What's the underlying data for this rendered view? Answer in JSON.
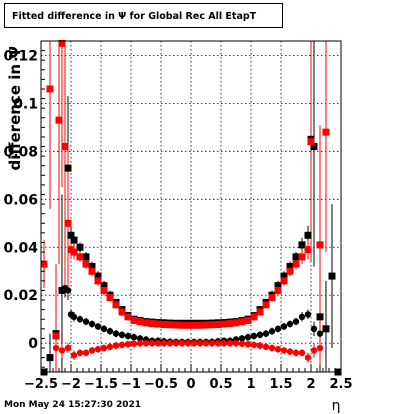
{
  "page": {
    "title": "Fitted difference in  Ψ  for Global Rec All EtapT",
    "footer": "Mon May 24 15:27:30 2021"
  },
  "chart_data": {
    "type": "scatter",
    "title": "Fitted difference in  Ψ  for Global Rec All EtapT",
    "xlabel": "η",
    "ylabel": "difference in Ψ",
    "xlim": [
      -2.5,
      2.5
    ],
    "ylim": [
      -0.012,
      0.126
    ],
    "grid": true,
    "x_ticks": [
      "−2.5",
      "−2",
      "−1.5",
      "−1",
      "−0.5",
      "0",
      "0.5",
      "1",
      "1.5",
      "2",
      "2.5"
    ],
    "y_ticks": [
      "0",
      "0.02",
      "0.04",
      "0.06",
      "0.08",
      "0.1",
      "0.12"
    ],
    "x_tick_values": [
      -2.5,
      -2,
      -1.5,
      -1,
      -0.5,
      0,
      0.5,
      1,
      1.5,
      2,
      2.5
    ],
    "y_tick_values": [
      0,
      0.02,
      0.04,
      0.06,
      0.08,
      0.1,
      0.12
    ],
    "series": [
      {
        "color": "#000000",
        "marker": "square",
        "points": [
          [
            -2.45,
            -0.012
          ],
          [
            -2.35,
            -0.006
          ],
          [
            -2.25,
            0.004
          ],
          [
            -2.15,
            0.022
          ],
          [
            -2.1,
            0.082
          ],
          [
            -2.05,
            0.073
          ],
          [
            -2.0,
            0.045
          ],
          [
            -1.95,
            0.043
          ],
          [
            -1.85,
            0.04
          ],
          [
            -1.75,
            0.036
          ],
          [
            -1.65,
            0.032
          ],
          [
            -1.55,
            0.028
          ],
          [
            -1.45,
            0.024
          ],
          [
            -1.35,
            0.02
          ],
          [
            -1.25,
            0.017
          ],
          [
            -1.15,
            0.014
          ],
          [
            -1.05,
            0.0115
          ],
          [
            -0.95,
            0.01
          ],
          [
            -0.85,
            0.0095
          ],
          [
            -0.75,
            0.009
          ],
          [
            -0.65,
            0.0088
          ],
          [
            -0.55,
            0.0086
          ],
          [
            -0.45,
            0.0085
          ],
          [
            -0.35,
            0.0084
          ],
          [
            -0.25,
            0.0083
          ],
          [
            -0.15,
            0.0083
          ],
          [
            -0.05,
            0.0083
          ],
          [
            0.05,
            0.0083
          ],
          [
            0.15,
            0.0083
          ],
          [
            0.25,
            0.0083
          ],
          [
            0.35,
            0.0084
          ],
          [
            0.45,
            0.0085
          ],
          [
            0.55,
            0.0086
          ],
          [
            0.65,
            0.0088
          ],
          [
            0.75,
            0.009
          ],
          [
            0.85,
            0.0095
          ],
          [
            0.95,
            0.01
          ],
          [
            1.05,
            0.0115
          ],
          [
            1.15,
            0.014
          ],
          [
            1.25,
            0.017
          ],
          [
            1.35,
            0.02
          ],
          [
            1.45,
            0.024
          ],
          [
            1.55,
            0.028
          ],
          [
            1.65,
            0.032
          ],
          [
            1.75,
            0.036
          ],
          [
            1.85,
            0.041
          ],
          [
            1.95,
            0.045
          ],
          [
            2.0,
            0.085
          ],
          [
            2.05,
            0.082
          ],
          [
            2.15,
            0.011
          ],
          [
            2.25,
            0.006
          ],
          [
            2.35,
            0.028
          ],
          [
            2.45,
            -0.012
          ]
        ],
        "errors": [
          0.001,
          0.01,
          0.02,
          0.04,
          0.05,
          0.03,
          0.004,
          0.003,
          0.002,
          0.002,
          0.002,
          0.002,
          0.002,
          0.002,
          0.0015,
          0.0015,
          0.0015,
          0.0015,
          0.0015,
          0.0015,
          0.0015,
          0.0015,
          0.0015,
          0.0015,
          0.0015,
          0.0015,
          0.0015,
          0.0015,
          0.0015,
          0.0015,
          0.0015,
          0.0015,
          0.0015,
          0.0015,
          0.0015,
          0.0015,
          0.0015,
          0.0015,
          0.0015,
          0.0015,
          0.002,
          0.002,
          0.002,
          0.002,
          0.002,
          0.003,
          0.004,
          0.05,
          0.05,
          0.03,
          0.02,
          0.03,
          0.001
        ]
      },
      {
        "color": "#000000",
        "marker": "circle",
        "points": [
          [
            -2.1,
            0.023
          ],
          [
            -2.05,
            0.022
          ],
          [
            -2.0,
            0.012
          ],
          [
            -1.95,
            0.011
          ],
          [
            -1.85,
            0.01
          ],
          [
            -1.75,
            0.009
          ],
          [
            -1.65,
            0.008
          ],
          [
            -1.55,
            0.007
          ],
          [
            -1.45,
            0.006
          ],
          [
            -1.35,
            0.005
          ],
          [
            -1.25,
            0.004
          ],
          [
            -1.15,
            0.0035
          ],
          [
            -1.05,
            0.003
          ],
          [
            -0.95,
            0.0025
          ],
          [
            -0.85,
            0.002
          ],
          [
            -0.75,
            0.0015
          ],
          [
            -0.65,
            0.001
          ],
          [
            -0.55,
            0.001
          ],
          [
            -0.45,
            0.0008
          ],
          [
            -0.35,
            0.0006
          ],
          [
            -0.25,
            0.0005
          ],
          [
            -0.15,
            0.0005
          ],
          [
            -0.05,
            0.0005
          ],
          [
            0.05,
            0.0005
          ],
          [
            0.15,
            0.0005
          ],
          [
            0.25,
            0.0005
          ],
          [
            0.35,
            0.0006
          ],
          [
            0.45,
            0.0008
          ],
          [
            0.55,
            0.001
          ],
          [
            0.65,
            0.001
          ],
          [
            0.75,
            0.0015
          ],
          [
            0.85,
            0.002
          ],
          [
            0.95,
            0.0025
          ],
          [
            1.05,
            0.003
          ],
          [
            1.15,
            0.0035
          ],
          [
            1.25,
            0.004
          ],
          [
            1.35,
            0.005
          ],
          [
            1.45,
            0.006
          ],
          [
            1.55,
            0.007
          ],
          [
            1.65,
            0.008
          ],
          [
            1.75,
            0.009
          ],
          [
            1.85,
            0.011
          ],
          [
            1.95,
            0.012
          ],
          [
            2.05,
            0.006
          ],
          [
            2.15,
            0.004
          ]
        ],
        "errors": [
          0.004,
          0.004,
          0.002,
          0.002,
          0.0015,
          0.0015,
          0.0015,
          0.0015,
          0.0015,
          0.0015,
          0.0015,
          0.0015,
          0.0015,
          0.0015,
          0.0015,
          0.0015,
          0.0015,
          0.0015,
          0.0015,
          0.0015,
          0.0015,
          0.0015,
          0.0015,
          0.0015,
          0.0015,
          0.0015,
          0.0015,
          0.0015,
          0.0015,
          0.0015,
          0.0015,
          0.0015,
          0.0015,
          0.0015,
          0.0015,
          0.0015,
          0.0015,
          0.0015,
          0.0015,
          0.0015,
          0.0015,
          0.002,
          0.002,
          0.003,
          0.003
        ]
      },
      {
        "color": "#ff0000",
        "marker": "square",
        "points": [
          [
            -2.45,
            0.033
          ],
          [
            -2.35,
            0.106
          ],
          [
            -2.25,
            0.003
          ],
          [
            -2.2,
            0.093
          ],
          [
            -2.15,
            0.125
          ],
          [
            -2.1,
            0.082
          ],
          [
            -2.05,
            0.05
          ],
          [
            -2.0,
            0.039
          ],
          [
            -1.95,
            0.038
          ],
          [
            -1.85,
            0.036
          ],
          [
            -1.75,
            0.033
          ],
          [
            -1.65,
            0.03
          ],
          [
            -1.55,
            0.026
          ],
          [
            -1.45,
            0.022
          ],
          [
            -1.35,
            0.019
          ],
          [
            -1.25,
            0.016
          ],
          [
            -1.15,
            0.013
          ],
          [
            -1.05,
            0.011
          ],
          [
            -0.95,
            0.0095
          ],
          [
            -0.85,
            0.009
          ],
          [
            -0.75,
            0.0085
          ],
          [
            -0.65,
            0.0082
          ],
          [
            -0.55,
            0.008
          ],
          [
            -0.45,
            0.0078
          ],
          [
            -0.35,
            0.0077
          ],
          [
            -0.25,
            0.0076
          ],
          [
            -0.15,
            0.0075
          ],
          [
            -0.05,
            0.0075
          ],
          [
            0.05,
            0.0075
          ],
          [
            0.15,
            0.0075
          ],
          [
            0.25,
            0.0076
          ],
          [
            0.35,
            0.0077
          ],
          [
            0.45,
            0.0078
          ],
          [
            0.55,
            0.008
          ],
          [
            0.65,
            0.0082
          ],
          [
            0.75,
            0.0085
          ],
          [
            0.85,
            0.009
          ],
          [
            0.95,
            0.0095
          ],
          [
            1.05,
            0.011
          ],
          [
            1.15,
            0.013
          ],
          [
            1.25,
            0.016
          ],
          [
            1.35,
            0.019
          ],
          [
            1.45,
            0.022
          ],
          [
            1.55,
            0.026
          ],
          [
            1.65,
            0.03
          ],
          [
            1.75,
            0.033
          ],
          [
            1.85,
            0.036
          ],
          [
            1.95,
            0.039
          ],
          [
            2.0,
            0.084
          ],
          [
            2.15,
            0.041
          ],
          [
            2.25,
            0.088
          ]
        ],
        "errors": [
          0.01,
          0.05,
          0.03,
          0.06,
          0.06,
          0.06,
          0.03,
          0.004,
          0.003,
          0.002,
          0.002,
          0.002,
          0.002,
          0.002,
          0.0015,
          0.0015,
          0.0015,
          0.0015,
          0.0015,
          0.0015,
          0.0015,
          0.0015,
          0.0015,
          0.0015,
          0.0015,
          0.0015,
          0.0015,
          0.0015,
          0.0015,
          0.0015,
          0.0015,
          0.0015,
          0.0015,
          0.0015,
          0.0015,
          0.0015,
          0.0015,
          0.0015,
          0.0015,
          0.0015,
          0.0015,
          0.0015,
          0.002,
          0.002,
          0.002,
          0.002,
          0.003,
          0.004,
          0.05,
          0.05,
          0.05
        ]
      },
      {
        "color": "#ff0000",
        "marker": "circle",
        "points": [
          [
            -2.25,
            -0.002
          ],
          [
            -2.15,
            -0.003
          ],
          [
            -2.05,
            -0.002
          ],
          [
            -1.95,
            -0.005
          ],
          [
            -1.85,
            -0.004
          ],
          [
            -1.75,
            -0.004
          ],
          [
            -1.65,
            -0.003
          ],
          [
            -1.55,
            -0.0025
          ],
          [
            -1.45,
            -0.002
          ],
          [
            -1.35,
            -0.0015
          ],
          [
            -1.25,
            -0.001
          ],
          [
            -1.15,
            -0.0007
          ],
          [
            -1.05,
            -0.0004
          ],
          [
            -0.95,
            -0.0002
          ],
          [
            -0.85,
            0.0
          ],
          [
            -0.75,
            0.0
          ],
          [
            -0.65,
            0.0
          ],
          [
            -0.55,
            0.0
          ],
          [
            -0.45,
            0.0
          ],
          [
            -0.35,
            0.0
          ],
          [
            -0.25,
            0.0
          ],
          [
            -0.15,
            0.0
          ],
          [
            -0.05,
            0.0
          ],
          [
            0.05,
            0.0
          ],
          [
            0.15,
            0.0
          ],
          [
            0.25,
            0.0
          ],
          [
            0.35,
            0.0
          ],
          [
            0.45,
            0.0
          ],
          [
            0.55,
            0.0
          ],
          [
            0.65,
            0.0
          ],
          [
            0.75,
            0.0
          ],
          [
            0.85,
            -0.0002
          ],
          [
            0.95,
            -0.0004
          ],
          [
            1.05,
            -0.0007
          ],
          [
            1.15,
            -0.001
          ],
          [
            1.25,
            -0.0015
          ],
          [
            1.35,
            -0.002
          ],
          [
            1.45,
            -0.0025
          ],
          [
            1.55,
            -0.003
          ],
          [
            1.65,
            -0.0035
          ],
          [
            1.75,
            -0.004
          ],
          [
            1.85,
            -0.004
          ],
          [
            1.95,
            -0.006
          ],
          [
            2.05,
            -0.003
          ],
          [
            2.15,
            -0.002
          ]
        ],
        "errors": [
          0.003,
          0.003,
          0.002,
          0.002,
          0.0015,
          0.0015,
          0.0015,
          0.0015,
          0.0015,
          0.0015,
          0.0015,
          0.0015,
          0.0015,
          0.0015,
          0.0015,
          0.0015,
          0.0015,
          0.0015,
          0.0015,
          0.0015,
          0.0015,
          0.0015,
          0.0015,
          0.0015,
          0.0015,
          0.0015,
          0.0015,
          0.0015,
          0.0015,
          0.0015,
          0.0015,
          0.0015,
          0.0015,
          0.0015,
          0.0015,
          0.0015,
          0.0015,
          0.0015,
          0.0015,
          0.0015,
          0.0015,
          0.0015,
          0.002,
          0.003,
          0.003
        ]
      }
    ]
  }
}
